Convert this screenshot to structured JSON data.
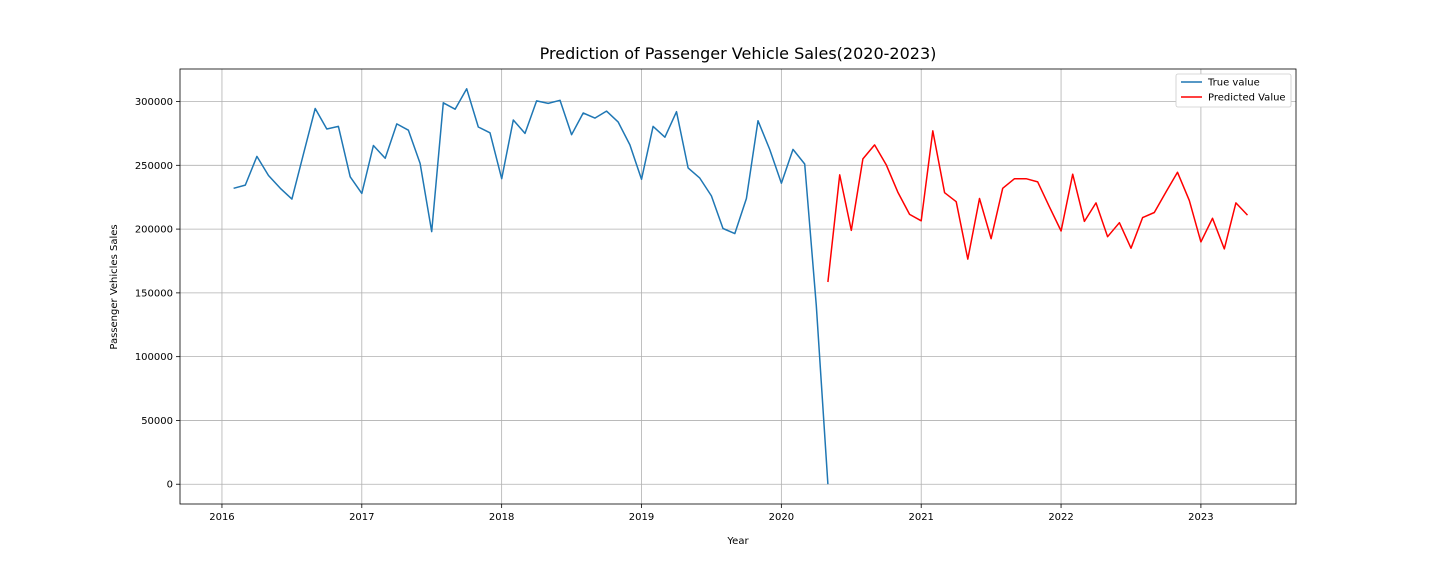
{
  "chart_data": {
    "type": "line",
    "title": "Prediction of Passenger Vehicle Sales(2020-2023)",
    "xlabel": "Year",
    "ylabel": "Passenger Vehicles Sales",
    "xlim": [
      2015.7,
      2023.68
    ],
    "ylim": [
      -15500,
      325500
    ],
    "x_ticks": [
      2016,
      2017,
      2018,
      2019,
      2020,
      2021,
      2022,
      2023
    ],
    "x_tick_labels": [
      "2016",
      "2017",
      "2018",
      "2019",
      "2020",
      "2021",
      "2022",
      "2023"
    ],
    "y_ticks": [
      0,
      50000,
      100000,
      150000,
      200000,
      250000,
      300000
    ],
    "y_tick_labels": [
      "0",
      "50000",
      "100000",
      "150000",
      "200000",
      "250000",
      "300000"
    ],
    "grid": true,
    "legend_position": "top-right",
    "series": [
      {
        "name": "True value",
        "color": "#1f77b4",
        "x": [
          2016.083,
          2016.167,
          2016.25,
          2016.333,
          2016.417,
          2016.5,
          2016.583,
          2016.667,
          2016.75,
          2016.833,
          2016.917,
          2017.0,
          2017.083,
          2017.167,
          2017.25,
          2017.333,
          2017.417,
          2017.5,
          2017.583,
          2017.667,
          2017.75,
          2017.833,
          2017.917,
          2018.0,
          2018.083,
          2018.167,
          2018.25,
          2018.333,
          2018.417,
          2018.5,
          2018.583,
          2018.667,
          2018.75,
          2018.833,
          2018.917,
          2019.0,
          2019.083,
          2019.167,
          2019.25,
          2019.333,
          2019.417,
          2019.5,
          2019.583,
          2019.667,
          2019.75,
          2019.833,
          2019.917,
          2020.0,
          2020.083,
          2020.167,
          2020.25,
          2020.333
        ],
        "values": [
          232000,
          234500,
          257000,
          242000,
          232000,
          223500,
          259000,
          294500,
          278500,
          280500,
          241000,
          228000,
          265500,
          255500,
          282500,
          277500,
          251500,
          198000,
          299000,
          294000,
          310000,
          280000,
          275500,
          239500,
          285500,
          275000,
          300500,
          298500,
          301000,
          274000,
          291000,
          287000,
          292500,
          284000,
          266000,
          239000,
          280500,
          272000,
          292000,
          248000,
          240000,
          226000,
          200500,
          196500,
          224000,
          285000,
          262500,
          236000,
          262500,
          251000,
          140000,
          0
        ]
      },
      {
        "name": "Predicted Value",
        "color": "#ff0000",
        "x": [
          2020.333,
          2020.417,
          2020.5,
          2020.583,
          2020.667,
          2020.75,
          2020.833,
          2020.917,
          2021.0,
          2021.083,
          2021.167,
          2021.25,
          2021.333,
          2021.417,
          2021.5,
          2021.583,
          2021.667,
          2021.75,
          2021.833,
          2021.917,
          2022.0,
          2022.083,
          2022.167,
          2022.25,
          2022.333,
          2022.417,
          2022.5,
          2022.583,
          2022.667,
          2022.75,
          2022.833,
          2022.917,
          2023.0,
          2023.083,
          2023.167,
          2023.25,
          2023.333
        ],
        "values": [
          158500,
          242500,
          199000,
          255000,
          266000,
          250500,
          229000,
          211500,
          206500,
          277000,
          228500,
          221500,
          176500,
          224000,
          192500,
          232000,
          239500,
          239500,
          237000,
          217500,
          198500,
          243000,
          206000,
          220500,
          194000,
          205000,
          185000,
          209000,
          213000,
          229000,
          244500,
          222500,
          190000,
          208500,
          184500,
          220500,
          211000
        ]
      }
    ]
  }
}
